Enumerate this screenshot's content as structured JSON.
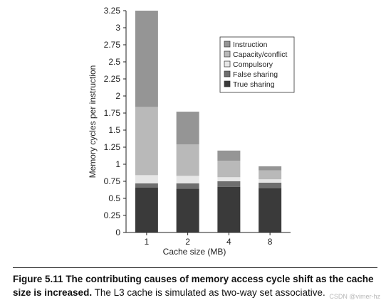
{
  "chart_data": {
    "type": "bar",
    "stacked": true,
    "categories": [
      "1",
      "2",
      "4",
      "8"
    ],
    "series": [
      {
        "name": "True sharing",
        "values": [
          0.66,
          0.64,
          0.67,
          0.65
        ],
        "color": "#3a3a3a"
      },
      {
        "name": "False sharing",
        "values": [
          0.06,
          0.08,
          0.08,
          0.08
        ],
        "color": "#6e6e6e"
      },
      {
        "name": "Compulsory",
        "values": [
          0.12,
          0.11,
          0.06,
          0.05
        ],
        "color": "#e6e6e6"
      },
      {
        "name": "Capacity/conflict",
        "values": [
          1.0,
          0.46,
          0.24,
          0.13
        ],
        "color": "#b9b9b9"
      },
      {
        "name": "Instruction",
        "values": [
          1.41,
          0.48,
          0.15,
          0.06
        ],
        "color": "#959595"
      }
    ],
    "legend_order": [
      "Instruction",
      "Capacity/conflict",
      "Compulsory",
      "False sharing",
      "True sharing"
    ],
    "legend_position": "top-right",
    "xlabel": "Cache size (MB)",
    "ylabel": "Memory cycles per instruction",
    "ylim": [
      0,
      3.25
    ],
    "yticks": [
      "0",
      "0.25",
      "0.5",
      "0.75",
      "1",
      "1.25",
      "1.5",
      "1.75",
      "2",
      "2.25",
      "2.5",
      "2.75",
      "3",
      "3.25"
    ],
    "grid": false
  },
  "caption": {
    "figure_label": "Figure 5.11",
    "bold_text": "The contributing causes of memory access cycle shift as the cache size is increased.",
    "normal_text": "The L3 cache is simulated as two-way set associative."
  },
  "watermark": "CSDN @vimer-hz"
}
